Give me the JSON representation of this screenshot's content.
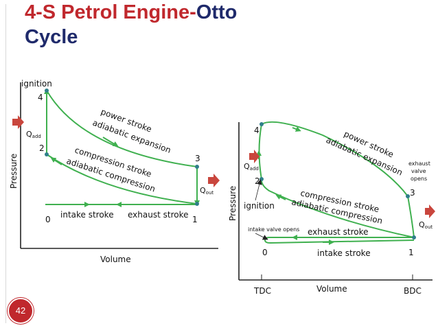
{
  "title": {
    "part1": "4-S Petrol Engine-",
    "part2": "Otto",
    "line2": "Cycle"
  },
  "page_number": "42",
  "colors": {
    "title_red": "#c0282d",
    "title_blue": "#1f2a6b",
    "curve_green": "#3fb04f",
    "point_teal": "#2f7f8a",
    "arrow_red": "#c9463d"
  },
  "left_diagram": {
    "y_axis_label": "Pressure",
    "x_axis_label": "Volume",
    "ignition": "ignition",
    "qadd": "Q",
    "qadd_sub": "add",
    "qout": "Q",
    "qout_sub": "out",
    "point_labels": [
      "0",
      "1",
      "2",
      "3",
      "4"
    ],
    "power_stroke": "power stroke",
    "adiabatic_expansion": "adiabatic expansion",
    "compression_stroke": "compression stroke",
    "adiabatic_compression": "adiabatic compression",
    "intake_stroke": "intake stroke",
    "exhaust_stroke": "exhaust stroke"
  },
  "right_diagram": {
    "y_axis_label": "Pressure",
    "x_axis_label": "Volume",
    "ignition": "ignition",
    "qadd": "Q",
    "qadd_sub": "add",
    "qout": "Q",
    "qout_sub": "out",
    "point_labels": [
      "0",
      "1",
      "2",
      "3",
      "4"
    ],
    "power_stroke": "power stroke",
    "adiabatic_expansion": "adiabatic expansion",
    "compression_stroke": "compression stroke",
    "adiabatic_compression": "adiabatic compression",
    "intake_stroke": "intake stroke",
    "exhaust_stroke": "exhaust stroke",
    "intake_valve_opens": "intake valve opens",
    "exhaust_valve_line1": "exhaust",
    "exhaust_valve_line2": "valve",
    "exhaust_valve_line3": "opens",
    "tdc": "TDC",
    "bdc": "BDC"
  }
}
